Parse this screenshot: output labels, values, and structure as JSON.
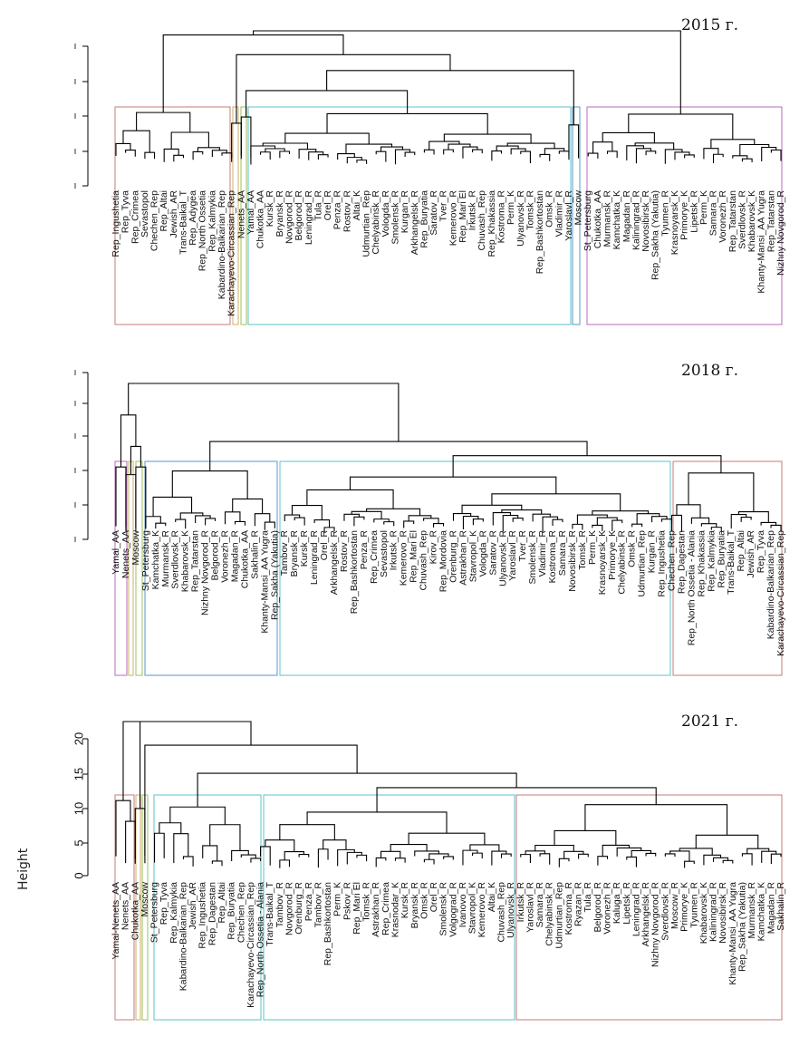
{
  "chart_data": [
    {
      "type": "dendrogram",
      "title": "2015 г.",
      "ylabel": "",
      "y_ticks": [],
      "cluster_box_colors": [
        "#c77b7b",
        "#c9b06a",
        "#9fbf5b",
        "#5bc3c7",
        "#5b96c7",
        "#b86bb8"
      ],
      "leaf_labels": [
        "Rep_Ingushetia",
        "Rep_Tyva",
        "Rep_Crimea",
        "Sevastopol",
        "Chechen_Rep",
        "Rep_Altai",
        "Jewish_AR",
        "Trans-Baikal_T",
        "Rep_Adygea",
        "Rep_North Ossetia",
        "Rep_Kalmykia",
        "Kabardino-Balkarian_Rep",
        "Karachayevo-Circassian_Rep",
        "Nenets_AA",
        "Yamal_AA",
        "Chukotka_AA",
        "Kursk_R",
        "Bryansk_R",
        "Novgorod_R",
        "Belgorod_R",
        "Leningrad_R",
        "Tula_R",
        "Orel_R",
        "Penza_R",
        "Rostov_R",
        "Altai_K",
        "Udmurtian_Rep",
        "Chelyabinsk_R",
        "Vologda_R",
        "Smolensk_R",
        "Kurgan_R",
        "Arkhangelsk_R",
        "Rep_Buryatia",
        "Saratov_R",
        "Tver_R",
        "Kemerovo_R",
        "Rep_Mari El",
        "Irkutsk_R",
        "Chuvash_Rep",
        "Rep_Khakassia",
        "Kostroma_R",
        "Perm_K",
        "Ulyanovsk_R",
        "Tomsk_R",
        "Rep_Bashkortostan",
        "Omsk_R",
        "Vladimir_R",
        "Yaroslavl_R",
        "Moscow",
        "St_Petersburg",
        "Chukotka_AA",
        "Murmansk_R",
        "Kamchatka_K",
        "Magadan_R",
        "Kaliningrad_R",
        "Novosibirsk_R",
        "Rep_Sakha (Yakutia)",
        "Tyumen_R",
        "Krasnoyarsk_K",
        "Primorye_K",
        "Lipetsk_R",
        "Perm_K",
        "Samara_R",
        "Voronezh_R",
        "Rep_Tatarstan",
        "Sverdlovsk_R",
        "Khabarovsk_K",
        "Khanty-Mansi_AA Yugra",
        "Rep_Tatarstan",
        "Nizhny Novgorod_R"
      ]
    },
    {
      "type": "dendrogram",
      "title": "2018 г.",
      "ylabel": "",
      "y_ticks": [],
      "cluster_box_colors": [
        "#b86bb8",
        "#c9b06a",
        "#9fbf5b",
        "#5b96c7",
        "#5bc3c7",
        "#c77b7b"
      ],
      "leaf_labels": [
        "Yamal_AA",
        "Nenets_AA",
        "Moscow",
        "St_Petersburg",
        "Kamchatka_K",
        "Murmansk_R",
        "Sverdlovsk_R",
        "Khabarovsk_K",
        "Rep_Tatarstan",
        "Nizhny Novgorod_R",
        "Belgorod_R",
        "Voronezh_R",
        "Magadan_R",
        "Chukotka_AA",
        "Sakhalin_R",
        "Khanty-Mansi_AA Yugra",
        "Rep_Sakha (Yakutia)",
        "Tambov_R",
        "Bryansk_R",
        "Kursk_R",
        "Leningrad_R",
        "Orel_R",
        "Arkhangelsk_R",
        "Rostov_R",
        "Rep_Bashkortostan",
        "Penza_R",
        "Rep_Crimea",
        "Sevastopol",
        "Irkutsk_R",
        "Kemerovo_R",
        "Rep_Mari El",
        "Chuvash_Rep",
        "Kirov_R",
        "Rep_Mordovia",
        "Orenburg_R",
        "Astrakhan_R",
        "Stavropol_K",
        "Vologda_R",
        "Saratov_R",
        "Ulyanovsk_R",
        "Yaroslavl_R",
        "Tver_R",
        "Smolensk_R",
        "Vladimir_R",
        "Kostroma_R",
        "Samara_R",
        "Novosibirsk_R",
        "Tomsk_R",
        "Perm_K",
        "Krasnoyarsk_K",
        "Primorye_K",
        "Chelyabinsk_R",
        "Omsk_R",
        "Udmurtian_Rep",
        "Kurgan_R",
        "Rep_Ingushetia",
        "Chechen_Rep",
        "Rep_Dagestan",
        "Rep_North Ossetia - Alania",
        "Rep_Khakassia",
        "Rep_Kalmykia",
        "Rep_Buryatia",
        "Trans-Baikal_T",
        "Rep_Altai",
        "Jewish_AR",
        "Rep_Tyva",
        "Kabardino-Balkarian_Rep",
        "Karachayevo-Circassian_Rep"
      ]
    },
    {
      "type": "dendrogram",
      "title": "2021 г.",
      "ylabel": "Height",
      "y_ticks": [
        "0",
        "5",
        "10",
        "15",
        "20"
      ],
      "y_tick_values": [
        0,
        5,
        10,
        15,
        20
      ],
      "cluster_box_colors": [
        "#c77b7b",
        "#c9b06a",
        "#9fbf5b",
        "#5bc3c7",
        "#5bc3c7",
        "#c77b7b"
      ],
      "leaf_labels": [
        "Yamal-Nenets_AA",
        "Nenets_AA",
        "Chukotka_AA",
        "Moscow",
        "St_Petersburg",
        "Rep_Tyva",
        "Rep_Kalmykia",
        "Kabardino-Balkarian_Rep",
        "Jewish_AR",
        "Rep_Ingushetia",
        "Rep_Dagestan",
        "Rep_Altai",
        "Rep_Buryatia",
        "Chechen_Rep",
        "Karachayevo-Circassian_Rep",
        "Rep_North Ossetia - Alania",
        "Trans-Baikal_T",
        "Tambov_R",
        "Novgorod_R",
        "Orenburg_R",
        "Penza_R",
        "Tambov_R",
        "Rep_Bashkortostan",
        "Perm_K",
        "Pskov_R",
        "Rep_Mari El",
        "Tomsk_R",
        "Astrakhan_R",
        "Rep_Crimea",
        "Krasnodar_K",
        "Kursk_R",
        "Bryansk_R",
        "Omsk_R",
        "Orel_R",
        "Smolensk_R",
        "Volgograd_R",
        "Ivanovo_R",
        "Stavropol_K",
        "Kemerovo_R",
        "Altai_K",
        "Chuvash_Rep",
        "Ulyanovsk_R",
        "Irkutsk_R",
        "Yaroslavl_R",
        "Samara_R",
        "Chelyabinsk_R",
        "Udmurtian_Rep",
        "Kostroma_R",
        "Ryazan_R",
        "Tula_R",
        "Belgorod_R",
        "Voronezh_R",
        "Kaluga_R",
        "Lipetsk_R",
        "Leningrad_R",
        "Arkhangelsk_R",
        "Nizhny Novgorod_R",
        "Sverdlovsk_R",
        "Moscow_R",
        "Primorye_K",
        "Tyumen_R",
        "Khabarovsk_K",
        "Kaliningrad_R",
        "Novosibirsk_R",
        "Khanty-Mansi_AA Yugra",
        "Rep_Sakha (Yakutia)",
        "Murmansk_R",
        "Kamchatka_K",
        "Magadan_R",
        "Sakhalin_R"
      ]
    }
  ]
}
